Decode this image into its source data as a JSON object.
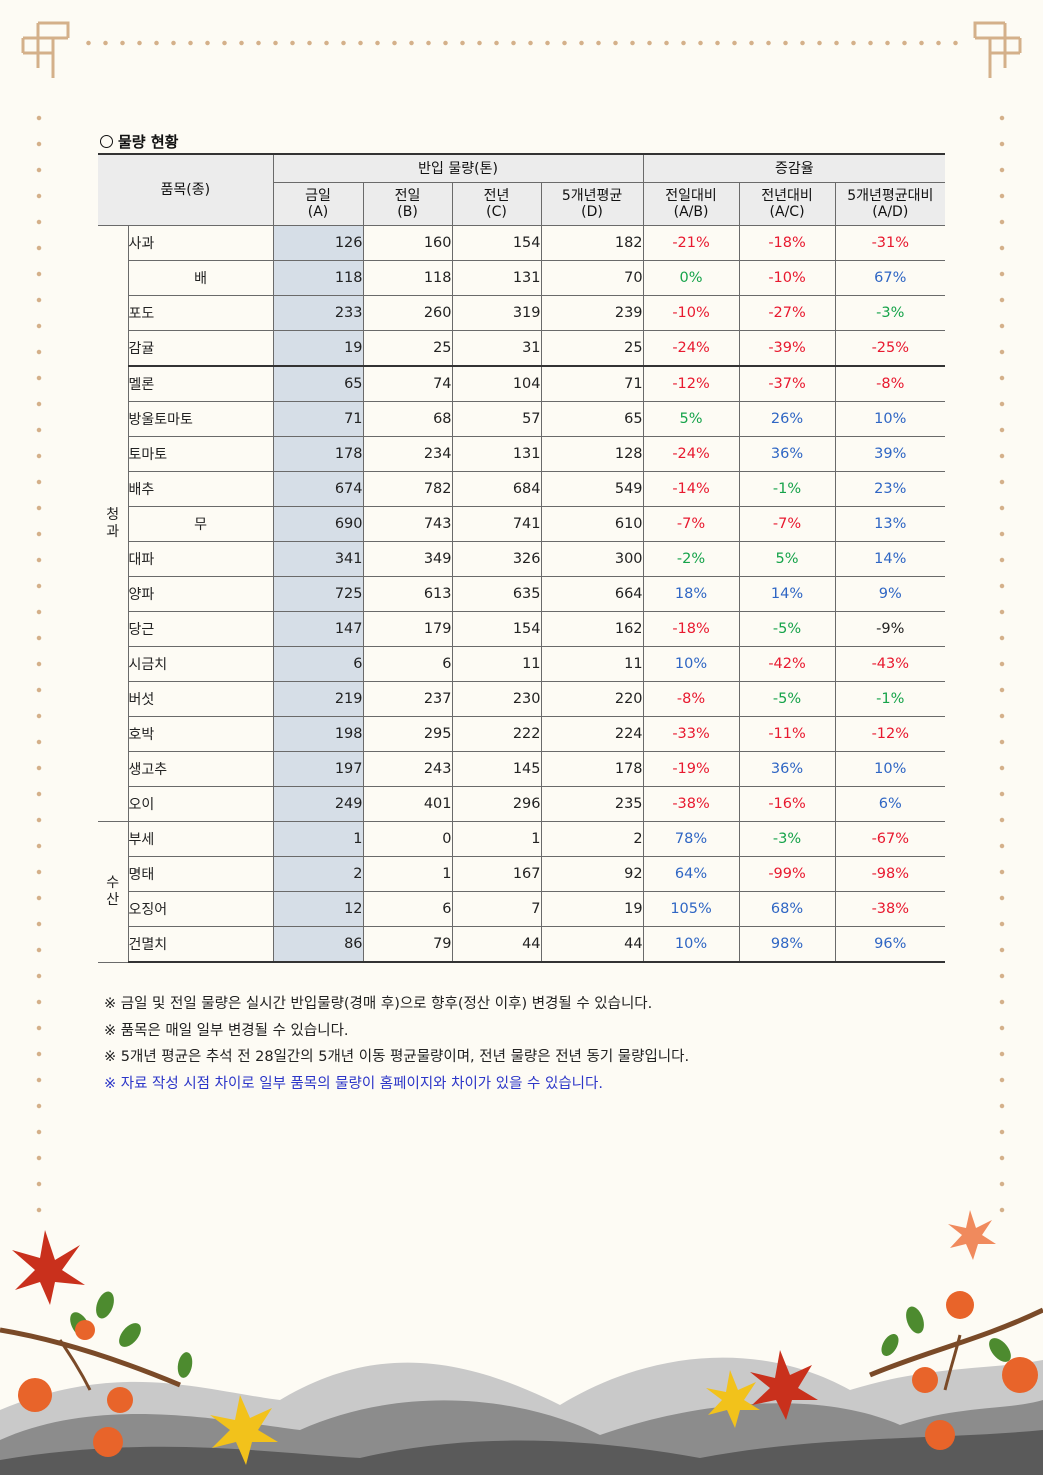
{
  "title": "물량 현황",
  "header": {
    "item": "품목(종)",
    "volume_group": "반입 물량(톤)",
    "rate_group": "증감율",
    "cols": [
      {
        "name": "금일",
        "sub": "(A)"
      },
      {
        "name": "전일",
        "sub": "(B)"
      },
      {
        "name": "전년",
        "sub": "(C)"
      },
      {
        "name": "5개년평균",
        "sub": "(D)"
      },
      {
        "name": "전일대비",
        "sub": "(A/B)"
      },
      {
        "name": "전년대비",
        "sub": "(A/C)"
      },
      {
        "name": "5개년평균대비",
        "sub": "(A/D)"
      }
    ]
  },
  "groups": {
    "fruit_veg": "청과",
    "seafood": "수산"
  },
  "rows": [
    {
      "name": "사과",
      "today": "126",
      "prev_day": "160",
      "prev_year": "154",
      "avg5": "182",
      "r1": "-21%",
      "r2": "-18%",
      "r3": "-31%"
    },
    {
      "name": "배",
      "today": "118",
      "prev_day": "118",
      "prev_year": "131",
      "avg5": "70",
      "r1": "0%",
      "r2": "-10%",
      "r3": "67%"
    },
    {
      "name": "포도",
      "today": "233",
      "prev_day": "260",
      "prev_year": "319",
      "avg5": "239",
      "r1": "-10%",
      "r2": "-27%",
      "r3": "-3%"
    },
    {
      "name": "감귤",
      "today": "19",
      "prev_day": "25",
      "prev_year": "31",
      "avg5": "25",
      "r1": "-24%",
      "r2": "-39%",
      "r3": "-25%"
    },
    {
      "name": "멜론",
      "today": "65",
      "prev_day": "74",
      "prev_year": "104",
      "avg5": "71",
      "r1": "-12%",
      "r2": "-37%",
      "r3": "-8%"
    },
    {
      "name": "방울토마토",
      "today": "71",
      "prev_day": "68",
      "prev_year": "57",
      "avg5": "65",
      "r1": "5%",
      "r2": "26%",
      "r3": "10%"
    },
    {
      "name": "토마토",
      "today": "178",
      "prev_day": "234",
      "prev_year": "131",
      "avg5": "128",
      "r1": "-24%",
      "r2": "36%",
      "r3": "39%"
    },
    {
      "name": "배추",
      "today": "674",
      "prev_day": "782",
      "prev_year": "684",
      "avg5": "549",
      "r1": "-14%",
      "r2": "-1%",
      "r3": "23%"
    },
    {
      "name": "무",
      "today": "690",
      "prev_day": "743",
      "prev_year": "741",
      "avg5": "610",
      "r1": "-7%",
      "r2": "-7%",
      "r3": "13%"
    },
    {
      "name": "대파",
      "today": "341",
      "prev_day": "349",
      "prev_year": "326",
      "avg5": "300",
      "r1": "-2%",
      "r2": "5%",
      "r3": "14%"
    },
    {
      "name": "양파",
      "today": "725",
      "prev_day": "613",
      "prev_year": "635",
      "avg5": "664",
      "r1": "18%",
      "r2": "14%",
      "r3": "9%"
    },
    {
      "name": "당근",
      "today": "147",
      "prev_day": "179",
      "prev_year": "154",
      "avg5": "162",
      "r1": "-18%",
      "r2": "-5%",
      "r3": "-9%"
    },
    {
      "name": "시금치",
      "today": "6",
      "prev_day": "6",
      "prev_year": "11",
      "avg5": "11",
      "r1": "10%",
      "r2": "-42%",
      "r3": "-43%"
    },
    {
      "name": "버섯",
      "today": "219",
      "prev_day": "237",
      "prev_year": "230",
      "avg5": "220",
      "r1": "-8%",
      "r2": "-5%",
      "r3": "-1%"
    },
    {
      "name": "호박",
      "today": "198",
      "prev_day": "295",
      "prev_year": "222",
      "avg5": "224",
      "r1": "-33%",
      "r2": "-11%",
      "r3": "-12%"
    },
    {
      "name": "생고추",
      "today": "197",
      "prev_day": "243",
      "prev_year": "145",
      "avg5": "178",
      "r1": "-19%",
      "r2": "36%",
      "r3": "10%"
    },
    {
      "name": "오이",
      "today": "249",
      "prev_day": "401",
      "prev_year": "296",
      "avg5": "235",
      "r1": "-38%",
      "r2": "-16%",
      "r3": "6%"
    },
    {
      "name": "부세",
      "today": "1",
      "prev_day": "0",
      "prev_year": "1",
      "avg5": "2",
      "r1": "78%",
      "r2": "-3%",
      "r3": "-67%"
    },
    {
      "name": "명태",
      "today": "2",
      "prev_day": "1",
      "prev_year": "167",
      "avg5": "92",
      "r1": "64%",
      "r2": "-99%",
      "r3": "-98%"
    },
    {
      "name": "오징어",
      "today": "12",
      "prev_day": "6",
      "prev_year": "7",
      "avg5": "19",
      "r1": "105%",
      "r2": "68%",
      "r3": "-38%"
    },
    {
      "name": "건멸치",
      "today": "86",
      "prev_day": "79",
      "prev_year": "44",
      "avg5": "44",
      "r1": "10%",
      "r2": "98%",
      "r3": "96%"
    }
  ],
  "rate_colors": {
    "-21%": "neg",
    "-18%": "neg",
    "-31%": "neg",
    "0%": "zero",
    "-10%": "neg",
    "67%": "pos",
    "-27%": "neg",
    "-3%": "zero",
    "-24%": "neg",
    "-39%": "neg",
    "-25%": "neg",
    "-12%": "neg",
    "-37%": "neg",
    "-8%": "neg",
    "5%": "zero",
    "26%": "pos",
    "10%": "pos",
    "36%": "pos",
    "39%": "pos",
    "-14%": "neg",
    "-1%": "zero",
    "23%": "pos",
    "-7%": "neg",
    "13%": "pos",
    "-2%": "zero",
    "14%": "pos",
    "18%": "pos",
    "9%": "pos",
    "-5%": "zero",
    "-42%": "neg",
    "-43%": "neg",
    "-33%": "neg",
    "-11%": "neg",
    "-19%": "neg",
    "-38%": "neg",
    "-16%": "neg",
    "6%": "pos",
    "78%": "pos",
    "-67%": "neg",
    "64%": "pos",
    "-99%": "neg",
    "-98%": "neg",
    "105%": "pos",
    "68%": "pos",
    "98%": "pos",
    "96%": "pos"
  },
  "notes": [
    "※ 금일 및 전일 물량은 실시간 반입물량(경매 후)으로 향후(정산 이후) 변경될 수 있습니다.",
    "※ 품목은 매일 일부 변경될 수 있습니다.",
    "※ 5개년 평균은 추석 전 28일간의 5개년 이동 평균물량이며, 전년 물량은 전년 동기 물량입니다.",
    "※ 자료 작성 시점 차이로 일부 품목의 물량이 홈페이지와 차이가 있을 수 있습니다."
  ],
  "colors": {
    "negative": "#e8192f",
    "positive": "#2f66c4",
    "neutral": "#16a34a",
    "note_highlight": "#2c36c8",
    "today_column": "#d6dee7"
  }
}
